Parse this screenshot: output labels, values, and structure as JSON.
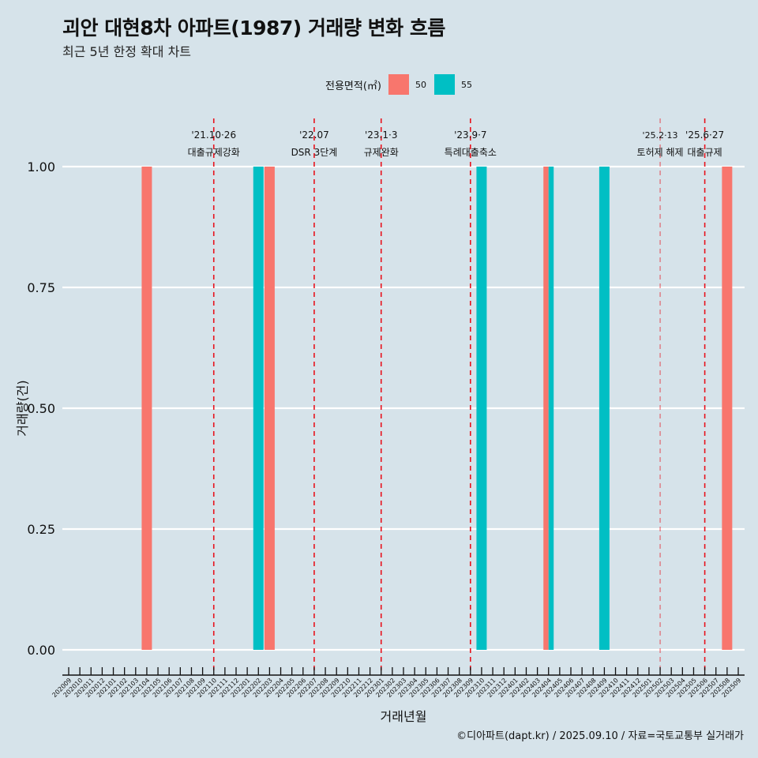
{
  "header": {
    "title": "괴안 대현8차 아파트(1987) 거래량 변화 흐름",
    "subtitle": "최근 5년 한정 확대 차트"
  },
  "legend": {
    "title": "전용면적(㎡)",
    "items": [
      {
        "label": "50",
        "color": "#f8766d"
      },
      {
        "label": "55",
        "color": "#00bfc4"
      }
    ]
  },
  "caption": "©디아파트(dapt.kr) / 2025.09.10 / 자료=국토교통부 실거래가",
  "chart_data": {
    "type": "bar",
    "title": "괴안 대현8차 아파트(1987) 거래량 변화 흐름",
    "subtitle": "최근 5년 한정 확대 차트",
    "xlabel": "거래년월",
    "ylabel": "거래량(건)",
    "ylim": [
      0,
      1
    ],
    "yticks": [
      "0.00",
      "0.25",
      "0.50",
      "0.75",
      "1.00"
    ],
    "ytick_values": [
      0,
      0.25,
      0.5,
      0.75,
      1.0
    ],
    "grid": true,
    "legend_position": "top",
    "categories": [
      "202009",
      "202010",
      "202011",
      "202012",
      "202101",
      "202102",
      "202103",
      "202104",
      "202105",
      "202106",
      "202107",
      "202108",
      "202109",
      "202110",
      "202111",
      "202112",
      "202201",
      "202202",
      "202203",
      "202204",
      "202205",
      "202206",
      "202207",
      "202208",
      "202209",
      "202210",
      "202211",
      "202212",
      "202301",
      "202302",
      "202303",
      "202304",
      "202305",
      "202306",
      "202307",
      "202308",
      "202309",
      "202310",
      "202311",
      "202312",
      "202401",
      "202402",
      "202403",
      "202404",
      "202405",
      "202406",
      "202407",
      "202408",
      "202409",
      "202410",
      "202411",
      "202412",
      "202501",
      "202502",
      "202503",
      "202504",
      "202505",
      "202506",
      "202507",
      "202508",
      "202509"
    ],
    "series": [
      {
        "name": "50",
        "color": "#f8766d",
        "points": [
          {
            "x": "202104",
            "y": 1
          },
          {
            "x": "202203",
            "y": 1
          },
          {
            "x": "202404",
            "y": 1
          },
          {
            "x": "202508",
            "y": 1
          }
        ]
      },
      {
        "name": "55",
        "color": "#00bfc4",
        "points": [
          {
            "x": "202202",
            "y": 1
          },
          {
            "x": "202310",
            "y": 1
          },
          {
            "x": "202404",
            "y": 1
          },
          {
            "x": "202409",
            "y": 1
          }
        ]
      }
    ],
    "annotations": [
      {
        "x": "202110",
        "date": "'21.10·26",
        "label": "대출규제강화",
        "faint": false
      },
      {
        "x": "202207",
        "date": "'22.07",
        "label": "DSR 3단계",
        "faint": false
      },
      {
        "x": "202301",
        "date": "'23.1·3",
        "label": "규제완화",
        "faint": false
      },
      {
        "x": "202309",
        "date": "'23.9·7",
        "label": "특례대출축소",
        "faint": false
      },
      {
        "x": "202502",
        "date": "'25.2·13",
        "label": "토허제 해제",
        "faint": true
      },
      {
        "x": "202506",
        "date": "'25.6·27",
        "label": "대출규제",
        "faint": false
      }
    ],
    "reference_line_color": "#e8121c"
  }
}
